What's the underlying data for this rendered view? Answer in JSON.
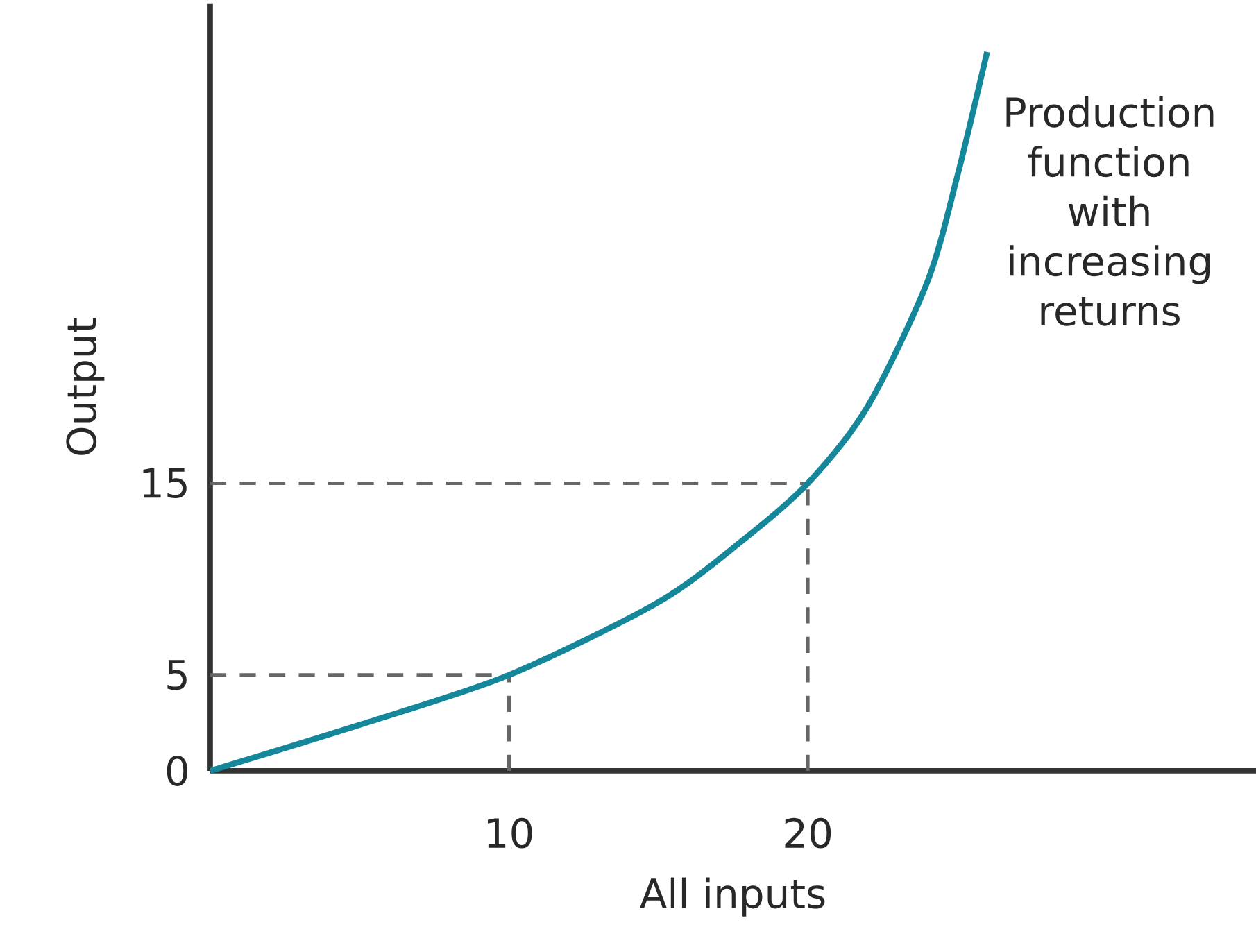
{
  "chart_data": {
    "type": "line",
    "xlabel": "All inputs",
    "ylabel": "Output",
    "annotations": [
      "Production function with increasing returns"
    ],
    "x": [
      0,
      5,
      10,
      15,
      17.8,
      20,
      22,
      24,
      25,
      26
    ],
    "series": [
      {
        "color": "#15879a",
        "values": [
          0,
          2.4,
          5,
          8.8,
          12,
          15,
          19,
          25.5,
          31,
          37.5
        ]
      }
    ],
    "xlim": [
      0,
      35
    ],
    "ylim": [
      0,
      40
    ],
    "xticks": [
      10,
      20
    ],
    "yticks": [
      0,
      5,
      15
    ],
    "ref_lines": [
      {
        "axis": "x",
        "value": 10,
        "color": "#666666",
        "line_style": "dashed"
      },
      {
        "axis": "x",
        "value": 20,
        "color": "#666666",
        "line_style": "dashed"
      },
      {
        "axis": "y",
        "value": 5,
        "color": "#666666",
        "line_style": "dashed"
      },
      {
        "axis": "y",
        "value": 15,
        "color": "#666666",
        "line_style": "dashed"
      }
    ]
  }
}
